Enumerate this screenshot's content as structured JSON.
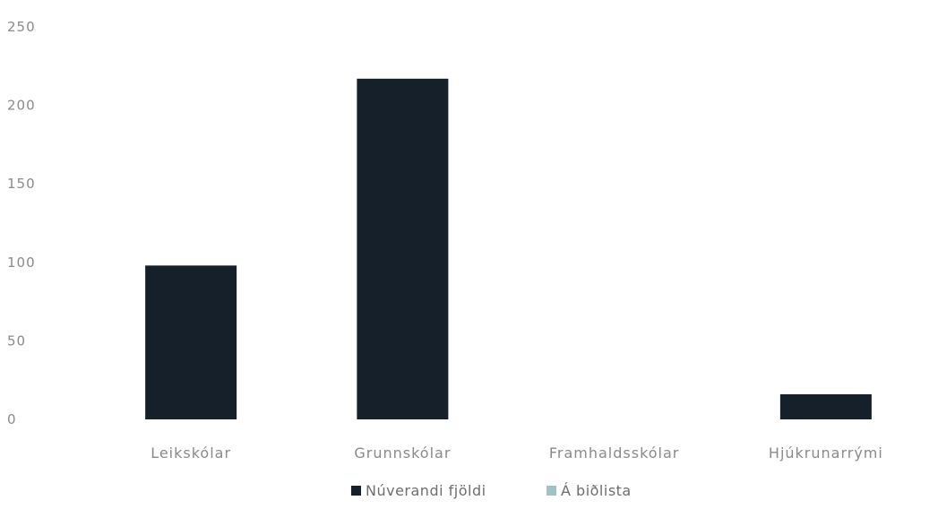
{
  "chart_data": {
    "type": "bar",
    "categories": [
      "Leikskólar",
      "Grunnskólar",
      "Framhaldsskólar",
      "Hjúkrunarrými"
    ],
    "series": [
      {
        "name": "Núverandi fjöldi",
        "values": [
          98,
          217,
          0,
          16
        ],
        "color": "#16202a"
      },
      {
        "name": "Á biðlista",
        "values": [
          0,
          0,
          0,
          0
        ],
        "color": "#9fc3c5"
      }
    ],
    "yticks": [
      "0",
      "50",
      "100",
      "150",
      "200",
      "250"
    ],
    "ylim": [
      0,
      250
    ],
    "grid": false,
    "legend_position": "bottom"
  }
}
